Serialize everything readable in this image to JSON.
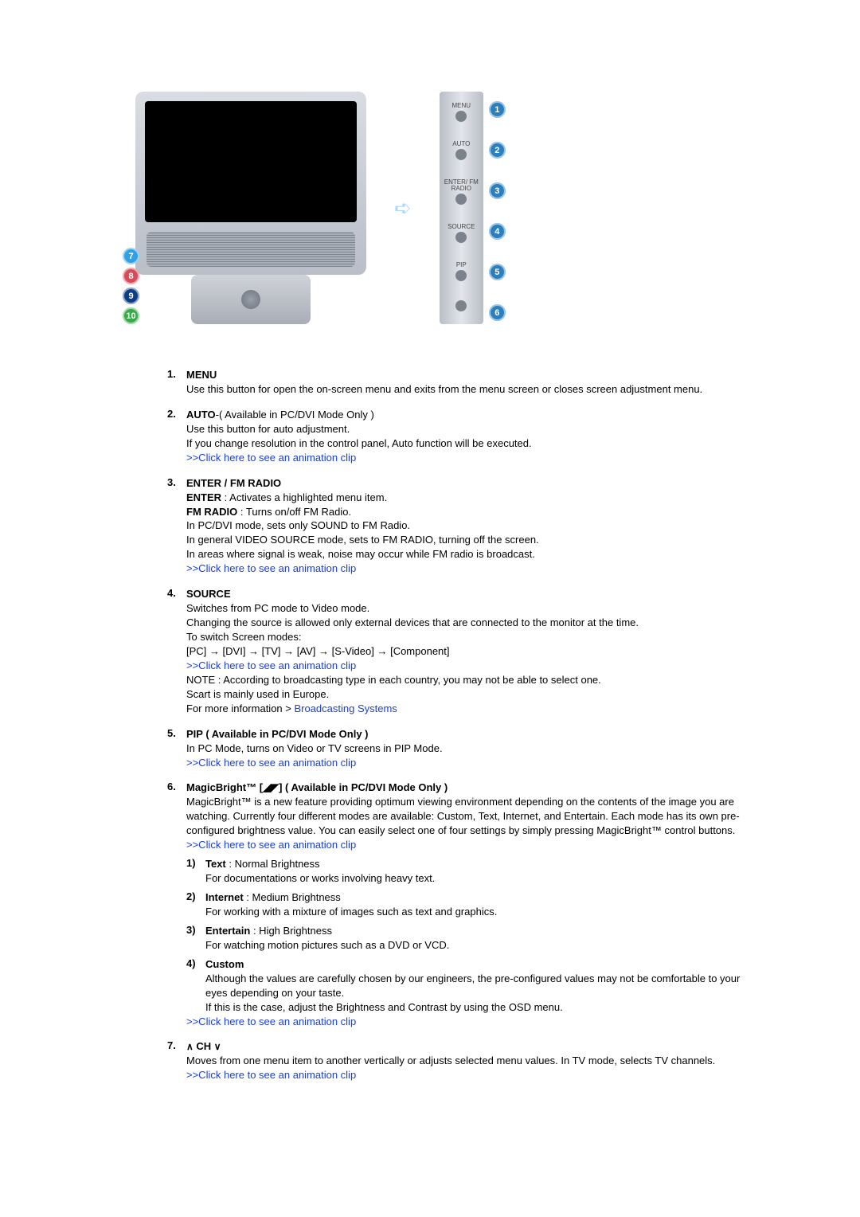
{
  "colors": {
    "link": "#1a3fd1",
    "badge_left": [
      "#32a0e6",
      "#d64a5a",
      "#0e3f86",
      "#3aa84a"
    ],
    "badge_right": [
      "#2b7fbf",
      "#2b7fbf",
      "#2b7fbf",
      "#2b7fbf",
      "#2b7fbf",
      "#2b7fbf"
    ]
  },
  "hero": {
    "left_badges": [
      "7",
      "8",
      "9",
      "10"
    ],
    "side_labels": [
      "MENU",
      "AUTO",
      "ENTER/\nFM RADIO",
      "SOURCE",
      "PIP",
      ""
    ],
    "right_badges": [
      "1",
      "2",
      "3",
      "4",
      "5",
      "6"
    ]
  },
  "link_text": ">>Click here to see an animation clip",
  "items": [
    {
      "n": "1.",
      "title": "MENU",
      "lines": [
        "Use this button for open the on-screen menu and exits from the menu screen or closes screen adjustment menu."
      ]
    },
    {
      "n": "2.",
      "inline_title": "AUTO",
      "inline_rest": "-( Available in PC/DVI Mode Only )",
      "lines": [
        "Use this button for auto adjustment.",
        "If you change resolution in the control panel, Auto function will be executed."
      ],
      "link": true
    },
    {
      "n": "3.",
      "title": "ENTER / FM RADIO",
      "bold_pairs": [
        {
          "b": "ENTER",
          "rest": " : Activates a highlighted menu item."
        },
        {
          "b": "FM RADIO",
          "rest": " : Turns on/off FM Radio."
        }
      ],
      "lines": [
        "In PC/DVI mode, sets only SOUND to FM Radio.",
        "In general VIDEO SOURCE mode, sets to FM RADIO, turning off the screen.",
        "In areas where signal is weak, noise may occur while FM radio is broadcast."
      ],
      "link": true
    },
    {
      "n": "4.",
      "title": "SOURCE",
      "lines": [
        "Switches from PC mode to Video mode.",
        "Changing the source is allowed only external devices that are connected to the monitor at the time.",
        "To switch Screen modes:"
      ],
      "chain": [
        "[PC]",
        "[DVI]",
        "[TV]",
        "[AV]",
        "[S-Video]",
        "[Component]"
      ],
      "link": true,
      "after_link_lines": [
        "NOTE : According to broadcasting type in each country, you may not be able to select one.",
        "Scart is mainly used in Europe."
      ],
      "more_info_prefix": "For more information > ",
      "more_info_link": "Broadcasting Systems"
    },
    {
      "n": "5.",
      "title": "PIP ( Available in PC/DVI Mode Only )",
      "lines": [
        "In PC Mode, turns on Video or TV screens in PIP Mode."
      ],
      "link": true
    },
    {
      "n": "6.",
      "title_html": true,
      "title_pre": "MagicBright™  [",
      "title_mid_icon": "◢◤",
      "title_post": "] ( Available in PC/DVI Mode Only )",
      "lines": [
        "MagicBright™ is a new feature providing optimum viewing environment depending on the contents of the image you are watching. Currently four different modes are available: Custom, Text, Internet, and Entertain. Each mode has its own pre-configured brightness value. You can easily select one of four settings by simply pressing MagicBright™ control buttons."
      ],
      "subitems": [
        {
          "sn": "1)",
          "b": "Text",
          "rest": " : Normal Brightness",
          "desc": "For documentations or works involving heavy text."
        },
        {
          "sn": "2)",
          "b": "Internet",
          "rest": " : Medium Brightness",
          "desc": "For working with a mixture of images such as text and graphics."
        },
        {
          "sn": "3)",
          "b": "Entertain",
          "rest": " : High Brightness",
          "desc": "For watching motion pictures such as a DVD or VCD."
        },
        {
          "sn": "4)",
          "b": "Custom",
          "rest": "",
          "desc": "Although the values are carefully chosen by our engineers, the pre-configured values may not be comfortable to your eyes depending on your taste.\nIf this is the case, adjust the Brightness and Contrast by using the OSD menu."
        }
      ],
      "link": true
    },
    {
      "n": "7.",
      "title_html": true,
      "title_icon_pre": "∧",
      "title_mid": " CH ",
      "title_icon_post": "∨",
      "lines": [
        "Moves from one menu item to another vertically or adjusts selected menu values. In TV mode, selects TV channels."
      ],
      "link": true
    }
  ]
}
